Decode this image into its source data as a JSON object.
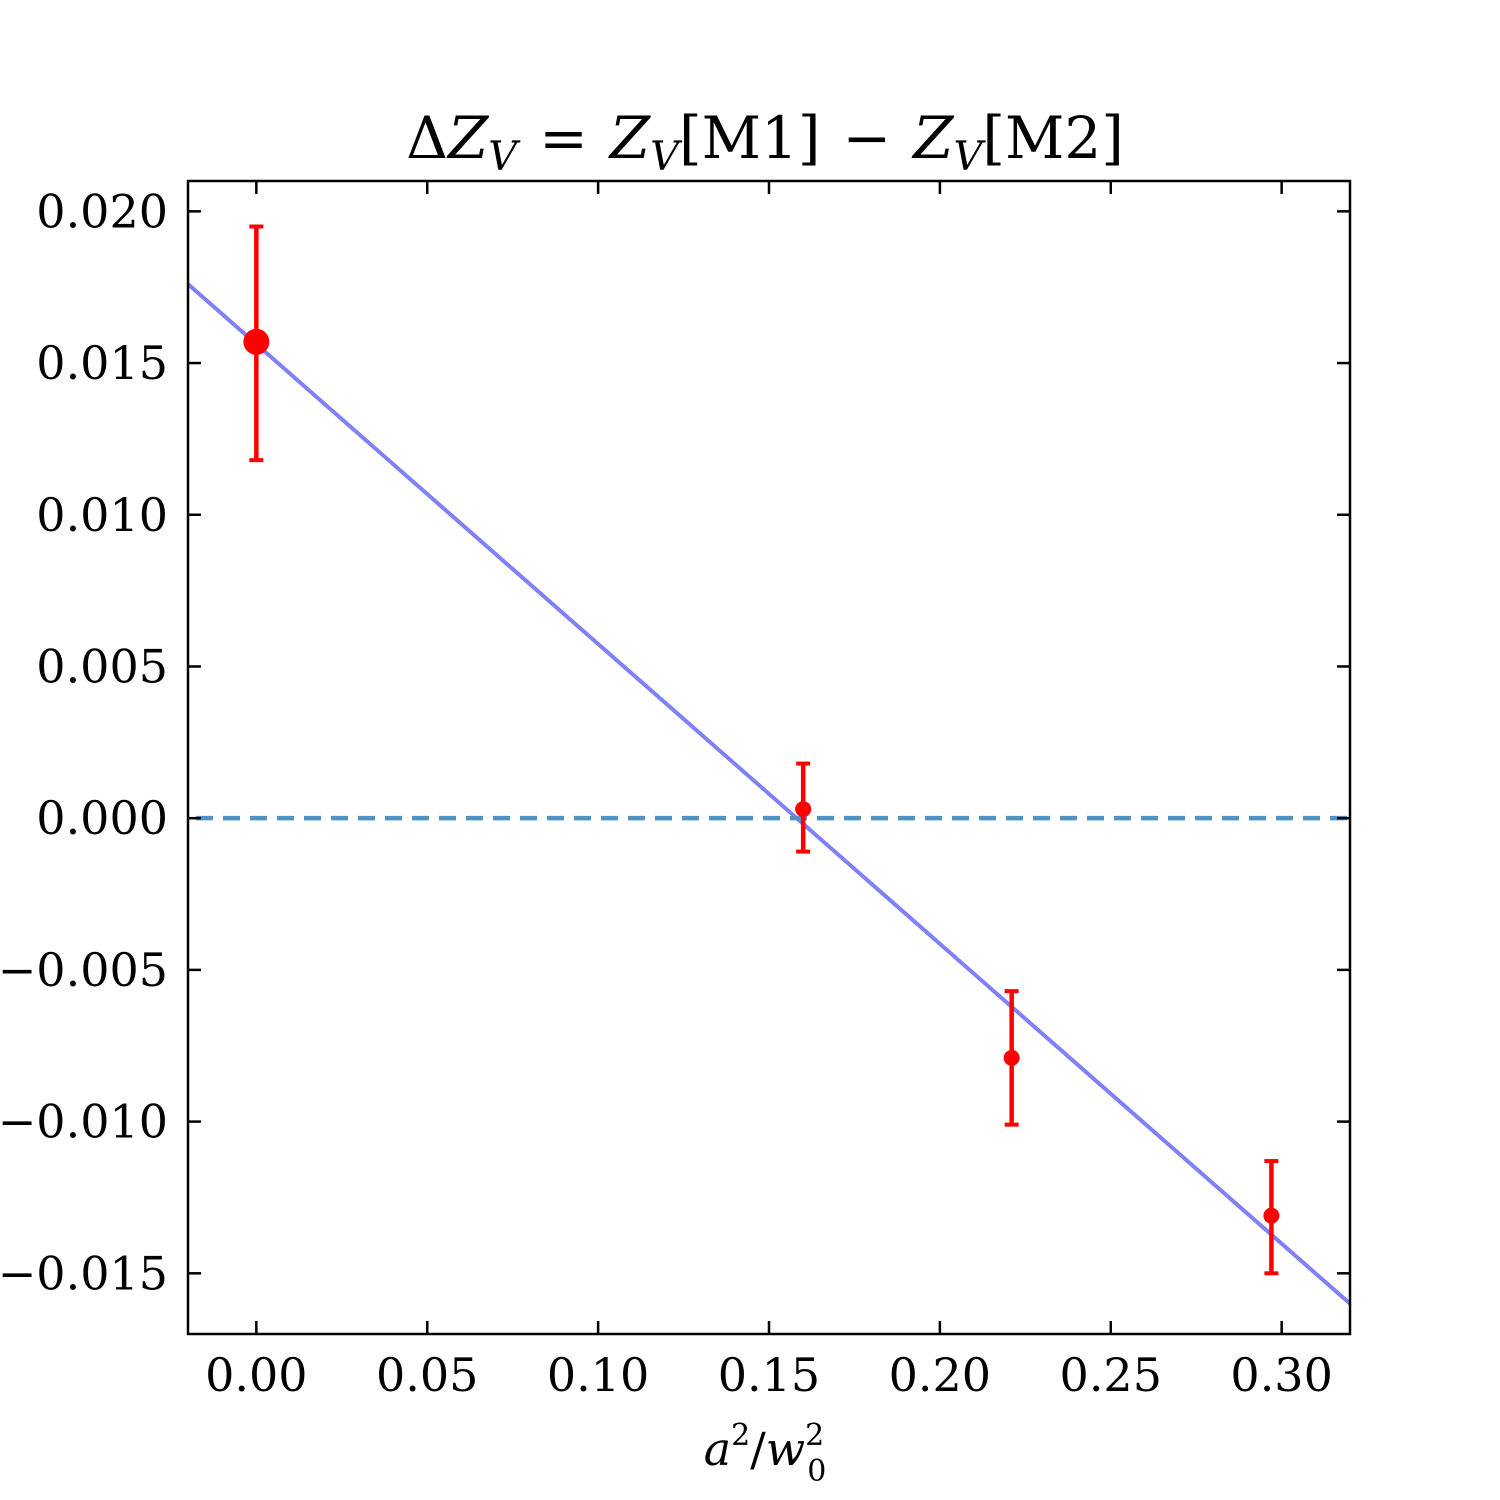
{
  "chart_data": {
    "type": "scatter",
    "title": "ΔZ_V = Z_V[M1] − Z_V[M2]",
    "title_parts": {
      "delta": "Δ",
      "z": "Z",
      "v": "V",
      "eq": "=",
      "m1": "[M1]",
      "minus": "−",
      "m2": "[M2]"
    },
    "xlabel": "a²/w₀²",
    "xlabel_parts": {
      "a": "a",
      "two": "2",
      "slash": "/",
      "w": "w",
      "zero": "0"
    },
    "ylabel": "",
    "xlim": [
      -0.02,
      0.32
    ],
    "ylim": [
      -0.017,
      0.021
    ],
    "xticks": [
      0.0,
      0.05,
      0.1,
      0.15,
      0.2,
      0.25,
      0.3
    ],
    "xtick_labels": [
      "0.00",
      "0.05",
      "0.10",
      "0.15",
      "0.20",
      "0.25",
      "0.30"
    ],
    "yticks": [
      0.02,
      0.015,
      0.01,
      0.005,
      0.0,
      -0.005,
      -0.01,
      -0.015
    ],
    "ytick_labels": [
      "0.020",
      "0.015",
      "0.010",
      "0.005",
      "0.000",
      "−0.005",
      "−0.010",
      "−0.015"
    ],
    "grid": false,
    "series": [
      {
        "kind": "errorbar",
        "color": "#ff0000",
        "points": [
          {
            "x": 0.0,
            "y": 0.0157,
            "yerr_low": 0.0118,
            "yerr_high": 0.0195,
            "emphasis": true
          },
          {
            "x": 0.16,
            "y": 0.0003,
            "yerr_low": -0.0011,
            "yerr_high": 0.0018,
            "emphasis": false
          },
          {
            "x": 0.221,
            "y": -0.0079,
            "yerr_low": -0.0101,
            "yerr_high": -0.0057,
            "emphasis": false
          },
          {
            "x": 0.297,
            "y": -0.0131,
            "yerr_low": -0.015,
            "yerr_high": -0.0113,
            "emphasis": false
          }
        ]
      },
      {
        "kind": "fit-line",
        "color": "#8080f8",
        "x": [
          -0.02,
          0.32
        ],
        "y": [
          0.0176,
          -0.016
        ]
      },
      {
        "kind": "reference-line",
        "style": "dashed",
        "color": "#4f93c4",
        "y": 0.0
      }
    ]
  }
}
